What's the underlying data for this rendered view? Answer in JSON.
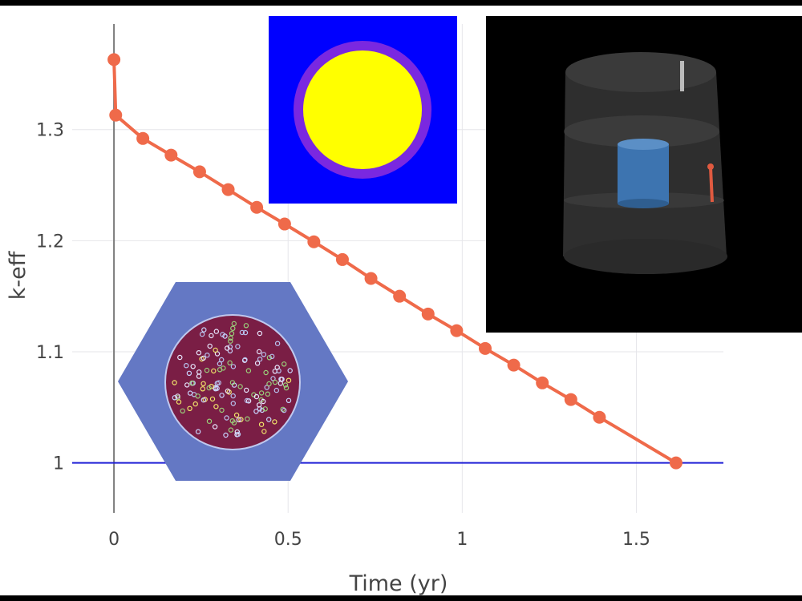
{
  "chart_data": {
    "type": "line",
    "title": "",
    "xlabel": "Time (yr)",
    "ylabel": "k-eff",
    "xlim": [
      -0.12,
      1.75
    ],
    "ylim": [
      0.955,
      1.395
    ],
    "xticks": [
      0,
      0.5,
      1,
      1.5
    ],
    "xtick_labels": [
      "0",
      "0.5",
      "1",
      "1.5"
    ],
    "yticks": [
      1,
      1.1,
      1.2,
      1.3
    ],
    "ytick_labels": [
      "1",
      "1.1",
      "1.2",
      "1.3"
    ],
    "grid": true,
    "reference_line": {
      "y": 1.0,
      "color": "#1f1fd6"
    },
    "series": [
      {
        "color": "#ef6a4a",
        "x": [
          0,
          0.005,
          0.083,
          0.164,
          0.246,
          0.328,
          0.41,
          0.49,
          0.574,
          0.656,
          0.738,
          0.82,
          0.902,
          0.984,
          1.066,
          1.148,
          1.23,
          1.312,
          1.394,
          1.614
        ],
        "y": [
          1.363,
          1.313,
          1.292,
          1.277,
          1.262,
          1.246,
          1.23,
          1.215,
          1.199,
          1.183,
          1.166,
          1.15,
          1.134,
          1.119,
          1.103,
          1.088,
          1.072,
          1.057,
          1.041,
          1.0
        ]
      }
    ]
  },
  "colors": {
    "background": "#ffffff",
    "frame": "#000000",
    "grid": "#e6e6ea",
    "axis_zero": "#7a7a7a",
    "tick_text": "#444444",
    "pin_fuel": "#ffff00",
    "pin_clad": "#7a28e0",
    "pin_coolant": "#0000ff",
    "hex_block": "#6478c4",
    "compact_matrix": "#7a1e45",
    "render_bg": "#000000",
    "render_core": "#3d74b0",
    "render_rod": "#e05a40"
  }
}
